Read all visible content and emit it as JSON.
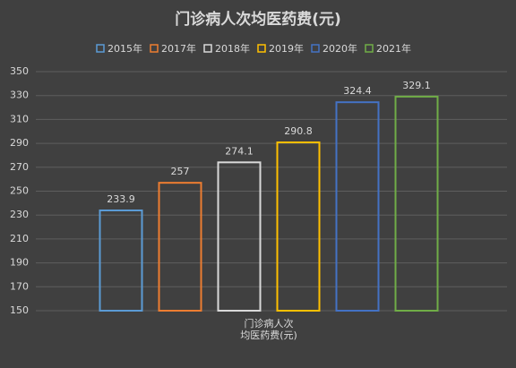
{
  "chart_data": {
    "type": "bar",
    "title": "门诊病人次均医药费(元)",
    "categories": [
      "门诊病人次均医药费(元)"
    ],
    "series": [
      {
        "name": "2015年",
        "color": "#5b9bd5",
        "values": [
          233.9
        ]
      },
      {
        "name": "2017年",
        "color": "#ed7d31",
        "values": [
          257
        ]
      },
      {
        "name": "2018年",
        "color": "#d9d9d9",
        "values": [
          274.1
        ]
      },
      {
        "name": "2019年",
        "color": "#ffc000",
        "values": [
          290.8
        ]
      },
      {
        "name": "2020年",
        "color": "#4472c4",
        "values": [
          324.4
        ]
      },
      {
        "name": "2021年",
        "color": "#70ad47",
        "values": [
          329.1
        ]
      }
    ],
    "ylim": [
      150,
      350
    ],
    "yticks": [
      150,
      170,
      190,
      210,
      230,
      250,
      270,
      290,
      310,
      330,
      350
    ],
    "grid": true,
    "legend": "top"
  }
}
